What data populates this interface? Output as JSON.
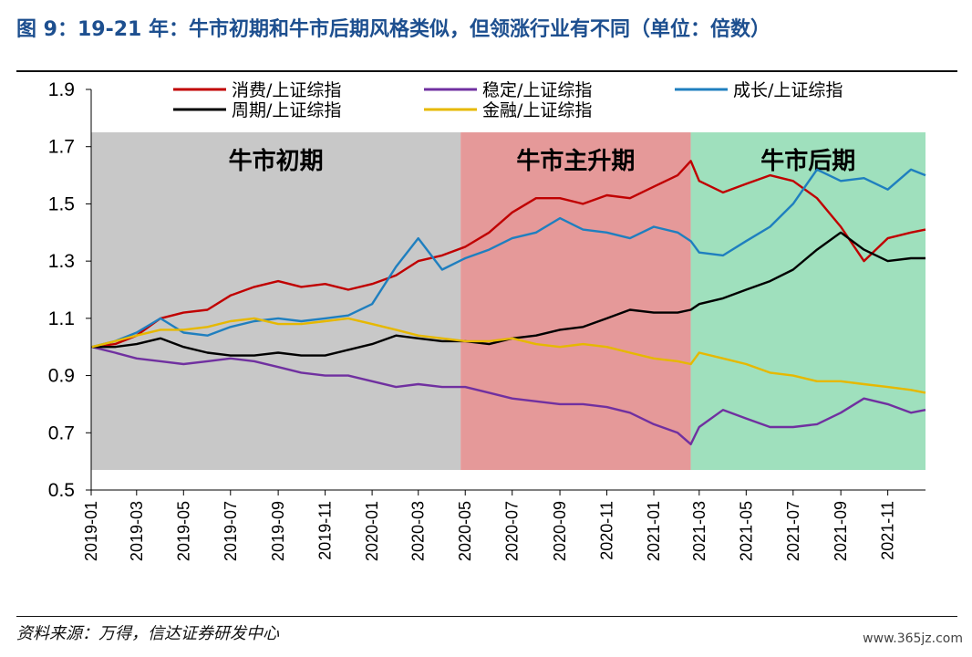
{
  "title": "图 9：19-21 年：牛市初期和牛市后期风格类似，但领涨行业有不同（单位：倍数）",
  "source": "资料来源：万得，信达证券研发中心",
  "watermark": "www.365jz.com",
  "chart_data": {
    "type": "line",
    "title": "",
    "xlabel": "",
    "ylabel": "",
    "ylim": [
      0.5,
      1.9
    ],
    "yticks": [
      "0.5",
      "0.7",
      "0.9",
      "1.1",
      "1.3",
      "1.5",
      "1.7",
      "1.9"
    ],
    "xlim": [
      "2019-01-01",
      "2021-12-20"
    ],
    "xticks": [
      "2019-01",
      "2019-03",
      "2019-05",
      "2019-07",
      "2019-09",
      "2019-11",
      "2020-01",
      "2020-03",
      "2020-05",
      "2020-07",
      "2020-09",
      "2020-11",
      "2021-01",
      "2021-03",
      "2021-05",
      "2021-07",
      "2021-09",
      "2021-11"
    ],
    "grid": false,
    "legend": "top",
    "phases": [
      {
        "label": "牛市初期",
        "start": "2019-01-01",
        "end": "2020-04-25",
        "ymin": 0.57,
        "ymax": 1.75,
        "color": "#c8c8c8"
      },
      {
        "label": "牛市主升期",
        "start": "2020-04-25",
        "end": "2021-02-18",
        "ymin": 0.57,
        "ymax": 1.75,
        "color": "#e59999"
      },
      {
        "label": "牛市后期",
        "start": "2021-02-18",
        "end": "2021-12-20",
        "ymin": 0.57,
        "ymax": 1.75,
        "color": "#9fe0bd"
      }
    ],
    "x": [
      "2019-01-02",
      "2019-02-01",
      "2019-03-01",
      "2019-04-01",
      "2019-05-01",
      "2019-06-01",
      "2019-07-01",
      "2019-08-01",
      "2019-09-01",
      "2019-10-01",
      "2019-11-01",
      "2019-12-01",
      "2020-01-01",
      "2020-02-01",
      "2020-03-01",
      "2020-04-01",
      "2020-05-01",
      "2020-06-01",
      "2020-07-01",
      "2020-08-01",
      "2020-09-01",
      "2020-10-01",
      "2020-11-01",
      "2020-12-01",
      "2021-01-01",
      "2021-02-01",
      "2021-02-18",
      "2021-03-01",
      "2021-04-01",
      "2021-05-01",
      "2021-06-01",
      "2021-07-01",
      "2021-08-01",
      "2021-09-01",
      "2021-10-01",
      "2021-11-01",
      "2021-12-01",
      "2021-12-20"
    ],
    "series": [
      {
        "name": "消费/上证综指",
        "color": "#c00000",
        "values": [
          1.0,
          1.01,
          1.04,
          1.1,
          1.12,
          1.13,
          1.18,
          1.21,
          1.23,
          1.21,
          1.22,
          1.2,
          1.22,
          1.25,
          1.3,
          1.32,
          1.35,
          1.4,
          1.47,
          1.52,
          1.52,
          1.5,
          1.53,
          1.52,
          1.56,
          1.6,
          1.65,
          1.58,
          1.54,
          1.57,
          1.6,
          1.58,
          1.52,
          1.42,
          1.3,
          1.38,
          1.4,
          1.41
        ]
      },
      {
        "name": "稳定/上证综指",
        "color": "#7030a0",
        "values": [
          1.0,
          0.98,
          0.96,
          0.95,
          0.94,
          0.95,
          0.96,
          0.95,
          0.93,
          0.91,
          0.9,
          0.9,
          0.88,
          0.86,
          0.87,
          0.86,
          0.86,
          0.84,
          0.82,
          0.81,
          0.8,
          0.8,
          0.79,
          0.77,
          0.73,
          0.7,
          0.66,
          0.72,
          0.78,
          0.75,
          0.72,
          0.72,
          0.73,
          0.77,
          0.82,
          0.8,
          0.77,
          0.78
        ]
      },
      {
        "name": "成长/上证综指",
        "color": "#1f7fbf",
        "values": [
          1.0,
          1.02,
          1.05,
          1.1,
          1.05,
          1.04,
          1.07,
          1.09,
          1.1,
          1.09,
          1.1,
          1.11,
          1.15,
          1.28,
          1.38,
          1.27,
          1.31,
          1.34,
          1.38,
          1.4,
          1.45,
          1.41,
          1.4,
          1.38,
          1.42,
          1.4,
          1.37,
          1.33,
          1.32,
          1.37,
          1.42,
          1.5,
          1.62,
          1.58,
          1.59,
          1.55,
          1.62,
          1.6
        ]
      },
      {
        "name": "周期/上证综指",
        "color": "#000000",
        "values": [
          1.0,
          1.0,
          1.01,
          1.03,
          1.0,
          0.98,
          0.97,
          0.97,
          0.98,
          0.97,
          0.97,
          0.99,
          1.01,
          1.04,
          1.03,
          1.02,
          1.02,
          1.01,
          1.03,
          1.04,
          1.06,
          1.07,
          1.1,
          1.13,
          1.12,
          1.12,
          1.13,
          1.15,
          1.17,
          1.2,
          1.23,
          1.27,
          1.34,
          1.4,
          1.34,
          1.3,
          1.31,
          1.31
        ]
      },
      {
        "name": "金融/上证综指",
        "color": "#e6b800",
        "values": [
          1.0,
          1.02,
          1.04,
          1.06,
          1.06,
          1.07,
          1.09,
          1.1,
          1.08,
          1.08,
          1.09,
          1.1,
          1.08,
          1.06,
          1.04,
          1.03,
          1.02,
          1.02,
          1.03,
          1.01,
          1.0,
          1.01,
          1.0,
          0.98,
          0.96,
          0.95,
          0.94,
          0.98,
          0.96,
          0.94,
          0.91,
          0.9,
          0.88,
          0.88,
          0.87,
          0.86,
          0.85,
          0.84
        ]
      }
    ]
  }
}
